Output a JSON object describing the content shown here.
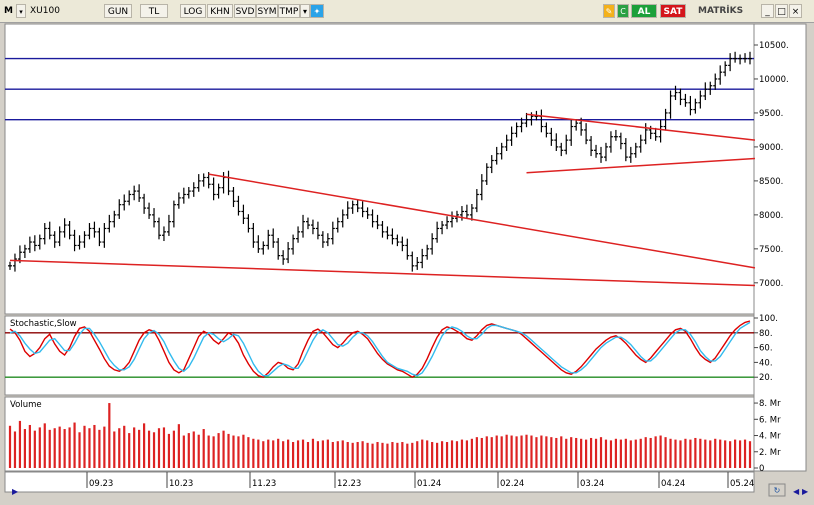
{
  "toolbar": {
    "m_label": "M",
    "symbol": "XU100",
    "buttons": [
      "GUN",
      "TL",
      "LOG",
      "KHN",
      "SVD",
      "SYM",
      "TMP"
    ],
    "al_label": "AL",
    "sat_label": "SAT",
    "brand": "MATRİKS",
    "window_controls": [
      "_",
      "□",
      "×"
    ]
  },
  "colors": {
    "ohlc": "#000000",
    "trendline": "#dd2222",
    "hline": "#1a1a9c",
    "stoch_k": "#dd0000",
    "stoch_d": "#33bbee",
    "volume": "#dd2222",
    "bg": "#ffffff"
  },
  "chart_data": [
    {
      "type": "ohlc",
      "title": "XU100",
      "x_ticks": [
        "09.23",
        "10.23",
        "11.23",
        "12.23",
        "01.24",
        "02.24",
        "03.24",
        "04.24",
        "05.24"
      ],
      "y_ticks": [
        "10500.",
        "10000.",
        "9500.",
        "9000.",
        "8500.",
        "8000.",
        "7500.",
        "7000."
      ],
      "ylim": [
        6600,
        10750
      ],
      "close": [
        7250,
        7350,
        7450,
        7500,
        7600,
        7550,
        7650,
        7800,
        7700,
        7600,
        7750,
        7850,
        7700,
        7550,
        7600,
        7700,
        7800,
        7750,
        7600,
        7800,
        7900,
        8000,
        8150,
        8200,
        8300,
        8350,
        8250,
        8100,
        8000,
        7900,
        7700,
        7750,
        7900,
        8150,
        8250,
        8300,
        8350,
        8400,
        8500,
        8550,
        8450,
        8300,
        8400,
        8550,
        8350,
        8200,
        8050,
        7950,
        7800,
        7600,
        7500,
        7550,
        7700,
        7600,
        7400,
        7350,
        7500,
        7650,
        7750,
        7900,
        7850,
        7800,
        7700,
        7600,
        7650,
        7800,
        7900,
        8000,
        8100,
        8150,
        8100,
        8050,
        8000,
        7900,
        7850,
        7750,
        7700,
        7650,
        7600,
        7550,
        7400,
        7250,
        7300,
        7400,
        7500,
        7650,
        7800,
        7850,
        7900,
        7950,
        8000,
        8050,
        8000,
        8100,
        8300,
        8500,
        8700,
        8800,
        8900,
        9000,
        9100,
        9200,
        9300,
        9350,
        9400,
        9450,
        9450,
        9300,
        9200,
        9100,
        9000,
        8950,
        9100,
        9300,
        9350,
        9250,
        9100,
        8950,
        8900,
        8850,
        9000,
        9150,
        9150,
        9050,
        8850,
        8900,
        9000,
        9100,
        9250,
        9200,
        9150,
        9300,
        9500,
        9750,
        9800,
        9700,
        9650,
        9550,
        9650,
        9750,
        9850,
        9900,
        10000,
        10100,
        10200,
        10300,
        10300,
        10300,
        10300,
        10300
      ],
      "horizontal_lines": [
        10300,
        9850,
        9400
      ],
      "trendlines": [
        {
          "from": [
            0,
            7330
          ],
          "to": [
            150,
            6960
          ]
        },
        {
          "from": [
            40,
            8600
          ],
          "to": [
            150,
            7220
          ]
        },
        {
          "from": [
            104,
            8620
          ],
          "to": [
            150,
            8830
          ]
        },
        {
          "from": [
            104,
            9480
          ],
          "to": [
            150,
            9100
          ]
        }
      ]
    },
    {
      "type": "line",
      "title": "Stochastic,Slow",
      "y_ticks": [
        "100.",
        "80.",
        "60.",
        "40.",
        "20."
      ],
      "ylim": [
        0,
        100
      ],
      "levels": [
        80,
        20
      ],
      "series": [
        {
          "values": [
            85,
            80,
            70,
            55,
            48,
            52,
            60,
            72,
            78,
            65,
            55,
            50,
            60,
            75,
            86,
            88,
            82,
            70,
            58,
            45,
            35,
            30,
            28,
            32,
            40,
            55,
            70,
            80,
            84,
            82,
            70,
            55,
            40,
            30,
            26,
            30,
            45,
            60,
            75,
            82,
            78,
            70,
            65,
            72,
            80,
            76,
            66,
            50,
            38,
            28,
            22,
            20,
            26,
            34,
            40,
            38,
            32,
            30,
            38,
            55,
            70,
            82,
            85,
            80,
            72,
            64,
            60,
            66,
            74,
            80,
            82,
            78,
            72,
            62,
            52,
            44,
            38,
            34,
            30,
            28,
            24,
            20,
            24,
            32,
            45,
            60,
            74,
            84,
            88,
            86,
            82,
            78,
            72,
            70,
            76,
            84,
            90,
            92,
            90,
            88,
            86,
            84,
            82,
            78,
            72,
            66,
            60,
            54,
            48,
            42,
            36,
            30,
            26,
            24,
            28,
            34,
            42,
            50,
            58,
            64,
            70,
            74,
            76,
            72,
            66,
            58,
            50,
            44,
            40,
            46,
            54,
            62,
            70,
            78,
            84,
            86,
            82,
            72,
            60,
            50,
            44,
            40,
            46,
            56,
            66,
            76,
            84,
            90,
            94,
            96
          ]
        },
        {
          "values": [
            80,
            82,
            76,
            66,
            58,
            52,
            54,
            62,
            70,
            72,
            64,
            56,
            56,
            66,
            78,
            86,
            86,
            78,
            68,
            56,
            44,
            36,
            30,
            30,
            34,
            44,
            58,
            72,
            80,
            83,
            78,
            68,
            54,
            42,
            32,
            28,
            34,
            46,
            60,
            74,
            80,
            78,
            72,
            68,
            72,
            78,
            76,
            66,
            52,
            38,
            28,
            22,
            22,
            28,
            34,
            38,
            36,
            32,
            32,
            42,
            56,
            70,
            80,
            84,
            80,
            72,
            64,
            62,
            66,
            74,
            80,
            80,
            76,
            68,
            58,
            48,
            40,
            36,
            32,
            30,
            28,
            24,
            22,
            26,
            36,
            48,
            62,
            76,
            84,
            88,
            86,
            82,
            76,
            72,
            72,
            78,
            86,
            90,
            90,
            88,
            86,
            84,
            82,
            80,
            76,
            70,
            64,
            58,
            52,
            46,
            40,
            34,
            30,
            26,
            26,
            30,
            36,
            44,
            52,
            60,
            66,
            70,
            74,
            74,
            70,
            64,
            56,
            48,
            42,
            42,
            48,
            56,
            64,
            72,
            80,
            84,
            84,
            78,
            68,
            56,
            48,
            42,
            42,
            48,
            58,
            68,
            78,
            86,
            90,
            94
          ]
        }
      ]
    },
    {
      "type": "bar",
      "title": "Volume",
      "y_ticks": [
        "8. Mr",
        "6. Mr",
        "4. Mr",
        "2. Mr",
        "0"
      ],
      "ylim": [
        0,
        8.5
      ],
      "values": [
        5.2,
        4.5,
        5.8,
        4.8,
        5.3,
        4.6,
        5.0,
        5.5,
        4.7,
        4.9,
        5.1,
        4.8,
        5.0,
        5.6,
        4.4,
        5.2,
        4.9,
        5.3,
        4.7,
        5.1,
        8.0,
        4.5,
        4.9,
        5.2,
        4.3,
        5.0,
        4.7,
        5.5,
        4.6,
        4.4,
        4.9,
        5.0,
        4.2,
        4.6,
        5.4,
        4.0,
        4.3,
        4.5,
        4.1,
        4.8,
        4.0,
        3.9,
        4.3,
        4.6,
        4.2,
        4.0,
        3.9,
        4.1,
        3.8,
        3.6,
        3.5,
        3.3,
        3.5,
        3.4,
        3.6,
        3.3,
        3.5,
        3.2,
        3.4,
        3.5,
        3.2,
        3.6,
        3.3,
        3.4,
        3.5,
        3.2,
        3.3,
        3.4,
        3.2,
        3.1,
        3.2,
        3.3,
        3.1,
        3.0,
        3.2,
        3.1,
        3.0,
        3.2,
        3.1,
        3.2,
        3.0,
        3.1,
        3.3,
        3.5,
        3.4,
        3.2,
        3.1,
        3.3,
        3.2,
        3.4,
        3.3,
        3.5,
        3.4,
        3.6,
        3.8,
        3.7,
        3.9,
        3.8,
        4.0,
        3.9,
        4.1,
        4.0,
        3.9,
        4.0,
        4.1,
        4.0,
        3.8,
        4.0,
        3.9,
        3.8,
        3.7,
        3.9,
        3.6,
        3.8,
        3.7,
        3.6,
        3.5,
        3.7,
        3.6,
        3.8,
        3.5,
        3.4,
        3.6,
        3.5,
        3.6,
        3.4,
        3.5,
        3.6,
        3.8,
        3.7,
        3.9,
        4.0,
        3.8,
        3.6,
        3.5,
        3.4,
        3.6,
        3.5,
        3.7,
        3.6,
        3.5,
        3.4,
        3.6,
        3.5,
        3.4,
        3.3,
        3.5,
        3.4,
        3.5,
        3.3
      ]
    }
  ]
}
